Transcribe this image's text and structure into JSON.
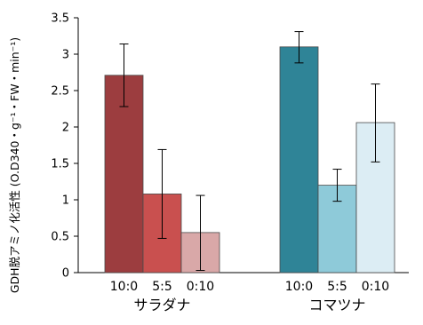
{
  "chart_data": {
    "type": "bar",
    "ylabel": "GDH脱アミノ化活性 (O.D340・g⁻¹・FW・min⁻¹)",
    "ylim": [
      0,
      3.5
    ],
    "yticks": [
      "0",
      "0.5",
      "1",
      "1.5",
      "2",
      "2.5",
      "3",
      "3.5"
    ],
    "groups": [
      {
        "name": "サラダナ",
        "bars": [
          {
            "label": "10:0",
            "value": 2.71,
            "err_low": 2.28,
            "err_high": 3.14,
            "color": "#9c3d3f"
          },
          {
            "label": "5:5",
            "value": 1.08,
            "err_low": 0.47,
            "err_high": 1.69,
            "color": "#c9504f"
          },
          {
            "label": "0:10",
            "value": 0.55,
            "err_low": 0.03,
            "err_high": 1.06,
            "color": "#d9a8a8"
          }
        ]
      },
      {
        "name": "コマツナ",
        "bars": [
          {
            "label": "10:0",
            "value": 3.1,
            "err_low": 2.88,
            "err_high": 3.31,
            "color": "#2f8497"
          },
          {
            "label": "5:5",
            "value": 1.2,
            "err_low": 0.98,
            "err_high": 1.42,
            "color": "#8ecad9"
          },
          {
            "label": "0:10",
            "value": 2.06,
            "err_low": 1.52,
            "err_high": 2.59,
            "color": "#dcedf4"
          }
        ]
      }
    ]
  }
}
